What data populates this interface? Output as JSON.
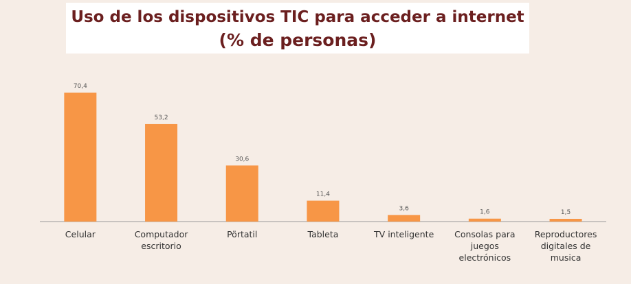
{
  "colors": {
    "bar": "#f79646",
    "title": "#6b1f1f",
    "axis": "#999999",
    "background": "#f6ede6"
  },
  "chart_data": {
    "type": "bar",
    "title_lines": [
      "Uso de los dispositivos TIC para acceder a internet",
      "(% de personas)"
    ],
    "categories": [
      [
        "Celular"
      ],
      [
        "Computador",
        "escritorio"
      ],
      [
        "Pörtatil"
      ],
      [
        "Tableta"
      ],
      [
        "TV inteligente"
      ],
      [
        "Consolas para",
        "juegos",
        "electrónicos"
      ],
      [
        "Reproductores",
        "digitales de",
        "musica"
      ]
    ],
    "values": [
      70.4,
      53.2,
      30.6,
      11.4,
      3.6,
      1.6,
      1.5
    ],
    "value_labels": [
      "70,4",
      "53,2",
      "30,6",
      "11,4",
      "3,6",
      "1,6",
      "1,5"
    ],
    "ylim": [
      0,
      70.4
    ],
    "grid": false,
    "legend": "none"
  }
}
